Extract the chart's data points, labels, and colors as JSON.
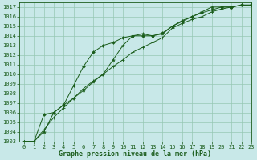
{
  "title": "Graphe pression niveau de la mer (hPa)",
  "ylim": [
    1003,
    1017.5
  ],
  "xlim": [
    -0.5,
    23
  ],
  "yticks": [
    1003,
    1004,
    1005,
    1006,
    1007,
    1008,
    1009,
    1010,
    1011,
    1012,
    1013,
    1014,
    1015,
    1016,
    1017
  ],
  "xticks": [
    0,
    1,
    2,
    3,
    4,
    5,
    6,
    7,
    8,
    9,
    10,
    11,
    12,
    13,
    14,
    15,
    16,
    17,
    18,
    19,
    20,
    21,
    22,
    23
  ],
  "bg_color": "#c8e8e8",
  "grid_color": "#96c8b4",
  "line_color": "#1a5c1a",
  "line1": [
    1003.0,
    1003.0,
    1004.0,
    1006.0,
    1006.8,
    1007.5,
    1008.3,
    1009.2,
    1010.0,
    1011.5,
    1013.0,
    1014.0,
    1014.2,
    1014.0,
    1014.2,
    1015.0,
    1015.5,
    1016.0,
    1016.5,
    1017.0,
    1017.0,
    1017.0,
    1017.2,
    1017.2
  ],
  "line2": [
    1003.0,
    1003.0,
    1004.2,
    1005.5,
    1006.5,
    1007.5,
    1008.5,
    1009.3,
    1010.0,
    1010.8,
    1011.5,
    1012.3,
    1012.8,
    1013.3,
    1013.8,
    1014.8,
    1015.3,
    1015.7,
    1016.0,
    1016.5,
    1016.8,
    1017.0,
    1017.2,
    1017.2
  ],
  "line3": [
    1003.0,
    1003.0,
    1005.8,
    1006.0,
    1006.8,
    1008.8,
    1010.8,
    1012.3,
    1013.0,
    1013.3,
    1013.8,
    1014.0,
    1014.0,
    1014.0,
    1014.3,
    1015.0,
    1015.6,
    1016.0,
    1016.4,
    1016.7,
    1017.0,
    1017.0,
    1017.2,
    1017.2
  ],
  "tick_fontsize": 5,
  "label_fontsize": 6,
  "linewidth": 0.7,
  "markersize_star": 3,
  "markersize_plus": 3,
  "markersize_dia": 2
}
